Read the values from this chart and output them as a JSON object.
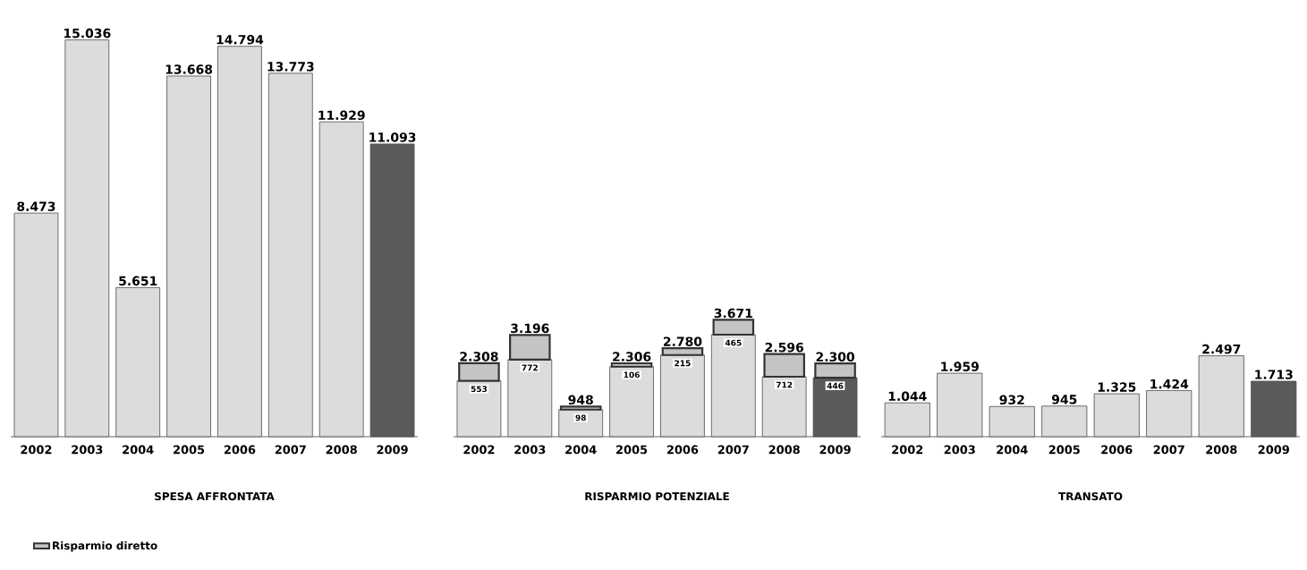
{
  "chart_data": [
    {
      "type": "bar",
      "xlabel": "SPESA AFFRONTATA",
      "categories": [
        "2002",
        "2003",
        "2004",
        "2005",
        "2006",
        "2007",
        "2008",
        "2009"
      ],
      "values": [
        8473,
        15036,
        5651,
        13668,
        14794,
        13773,
        11929,
        11093
      ],
      "value_labels": [
        "8.473",
        "15.036",
        "5.651",
        "13.668",
        "14.794",
        "13.773",
        "11.929",
        "11.093"
      ],
      "colors": [
        "#dcdcdc",
        "#dcdcdc",
        "#dcdcdc",
        "#dcdcdc",
        "#dcdcdc",
        "#dcdcdc",
        "#dcdcdc",
        "#5a5a5a"
      ]
    },
    {
      "type": "bar",
      "xlabel": "RISPARMIO POTENZIALE",
      "categories": [
        "2002",
        "2003",
        "2004",
        "2005",
        "2006",
        "2007",
        "2008",
        "2009"
      ],
      "legend": "bottom left",
      "stacked": true,
      "totals": [
        "2.308",
        "3.196",
        "948",
        "2.306",
        "2.780",
        "3.671",
        "2.596",
        "2.300"
      ],
      "series": [
        {
          "values": [
            1755,
            2424,
            850,
            2200,
            2565,
            3206,
            1884,
            1854
          ],
          "colors": [
            "#dcdcdc",
            "#dcdcdc",
            "#dcdcdc",
            "#dcdcdc",
            "#dcdcdc",
            "#dcdcdc",
            "#dcdcdc",
            "#5a5a5a"
          ]
        },
        {
          "name": "Risparmio diretto",
          "color": "#c4c4c4",
          "values": [
            553,
            772,
            98,
            106,
            215,
            465,
            712,
            446
          ],
          "value_labels": [
            "553",
            "772",
            "98",
            "106",
            "215",
            "465",
            "712",
            "446"
          ]
        }
      ]
    },
    {
      "type": "bar",
      "xlabel": "TRANSATO",
      "categories": [
        "2002",
        "2003",
        "2004",
        "2005",
        "2006",
        "2007",
        "2008",
        "2009"
      ],
      "values": [
        1044,
        1959,
        932,
        945,
        1325,
        1424,
        2497,
        1713
      ],
      "value_labels": [
        "1.044",
        "1.959",
        "932",
        "945",
        "1.325",
        "1.424",
        "2.497",
        "1.713"
      ],
      "colors": [
        "#dcdcdc",
        "#dcdcdc",
        "#dcdcdc",
        "#dcdcdc",
        "#dcdcdc",
        "#dcdcdc",
        "#dcdcdc",
        "#5a5a5a"
      ]
    }
  ]
}
